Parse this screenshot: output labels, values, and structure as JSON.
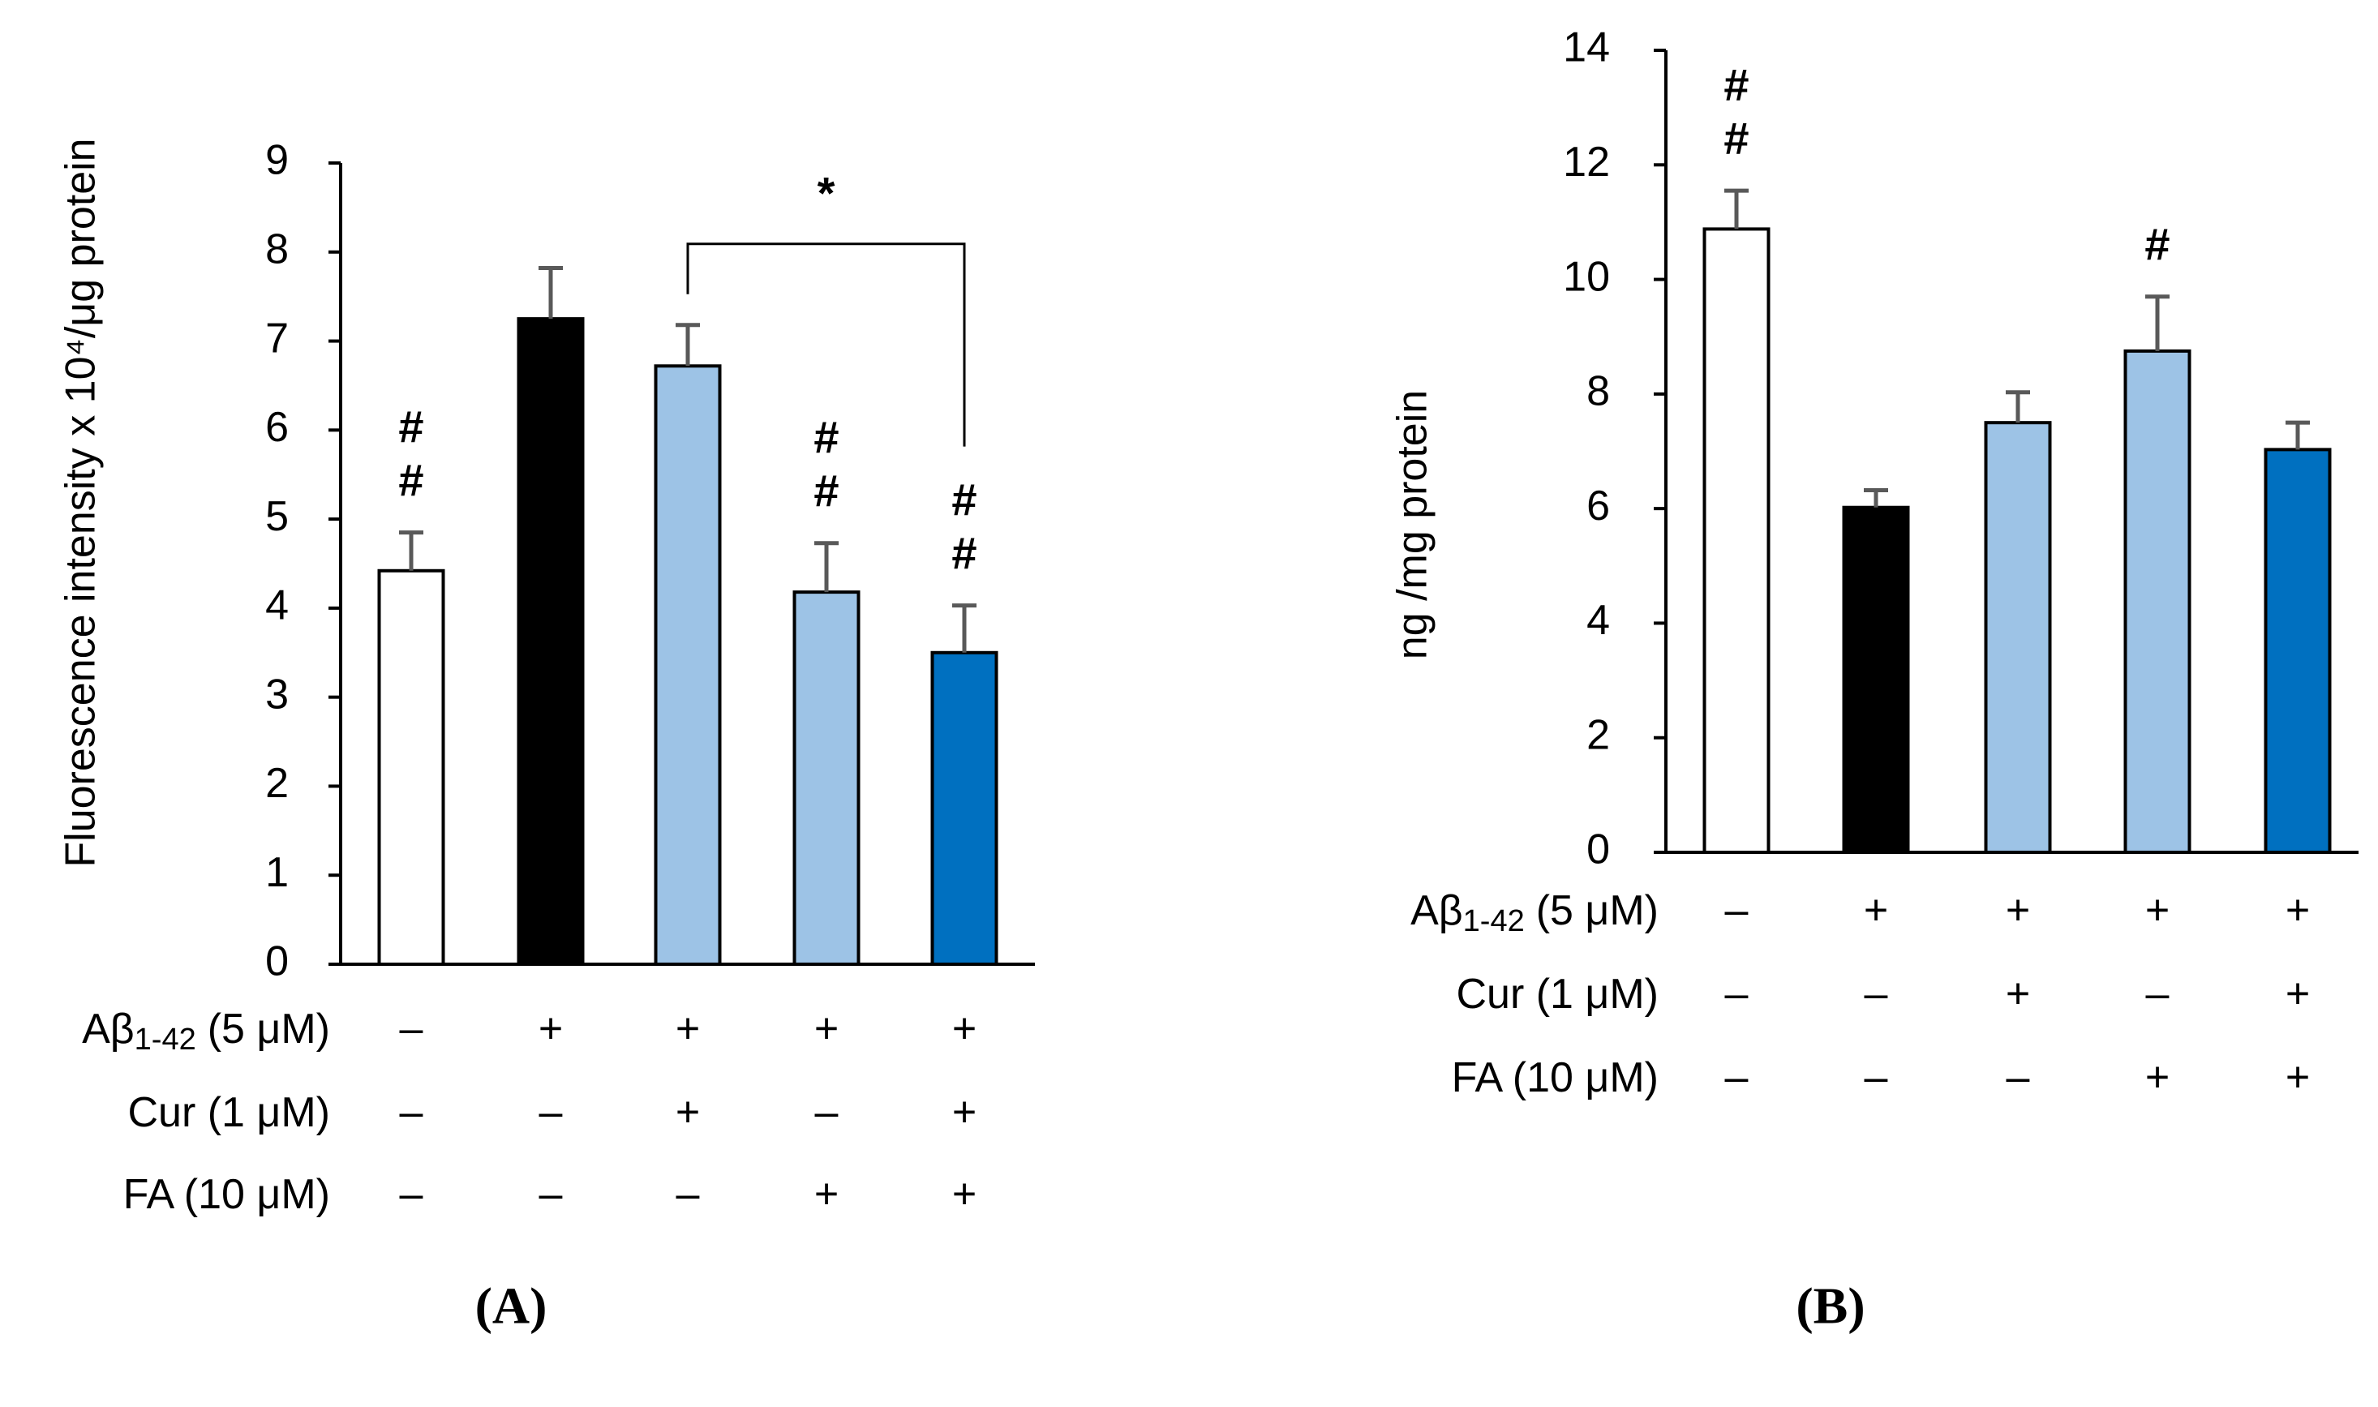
{
  "chart_data": [
    {
      "type": "bar",
      "panel": "(A)",
      "ylabel": "Fluorescence intensity x 10⁴/μg protein",
      "categories": [
        null,
        null,
        null,
        null,
        null
      ],
      "values": [
        4.42,
        7.25,
        6.72,
        4.18,
        3.5
      ],
      "errors": [
        0.43,
        0.57,
        0.46,
        0.55,
        0.53
      ],
      "colors": [
        "#ffffff",
        "#000000",
        "#9dc3e6",
        "#9dc3e6",
        "#0070c0"
      ],
      "ylim": [
        0,
        9
      ],
      "yticks": [
        0,
        1,
        2,
        3,
        4,
        5,
        6,
        7,
        8,
        9
      ],
      "value_annotations": [
        [
          "#",
          "#"
        ],
        null,
        null,
        [
          "#",
          "#"
        ],
        [
          "#",
          "#"
        ]
      ],
      "comparisons": [
        {
          "label": "*",
          "from": 2,
          "to": 4
        }
      ],
      "treatments": [
        {
          "label": {
            "main": "Aβ",
            "sub": "1-42",
            "rest": "(5 μM)"
          },
          "marks": [
            "–",
            "+",
            "+",
            "+",
            "+"
          ]
        },
        {
          "label": {
            "main": "Cur (1 μM)"
          },
          "marks": [
            "–",
            "–",
            "+",
            "–",
            "+"
          ]
        },
        {
          "label": {
            "main": "FA (10 μM)"
          },
          "marks": [
            "–",
            "–",
            "–",
            "+",
            "+"
          ]
        }
      ]
    },
    {
      "type": "bar",
      "panel": "(B)",
      "ylabel": "ng /mg protein",
      "categories": [
        null,
        null,
        null,
        null,
        null
      ],
      "values": [
        10.88,
        6.02,
        7.5,
        8.75,
        7.03
      ],
      "errors": [
        0.67,
        0.3,
        0.53,
        0.95,
        0.47
      ],
      "colors": [
        "#ffffff",
        "#000000",
        "#9dc3e6",
        "#9dc3e6",
        "#0070c0"
      ],
      "ylim": [
        0,
        14
      ],
      "yticks": [
        0,
        2,
        4,
        6,
        8,
        10,
        12,
        14
      ],
      "value_annotations": [
        [
          "#",
          "#"
        ],
        null,
        null,
        [
          "#"
        ],
        null
      ],
      "comparisons": [],
      "treatments": [
        {
          "label": {
            "main": "Aβ",
            "sub": "1-42",
            "rest": "(5 μM)"
          },
          "marks": [
            "–",
            "+",
            "+",
            "+",
            "+"
          ]
        },
        {
          "label": {
            "main": "Cur (1 μM)"
          },
          "marks": [
            "–",
            "–",
            "+",
            "–",
            "+"
          ]
        },
        {
          "label": {
            "main": "FA (10 μM)"
          },
          "marks": [
            "–",
            "–",
            "–",
            "+",
            "+"
          ]
        }
      ]
    }
  ]
}
